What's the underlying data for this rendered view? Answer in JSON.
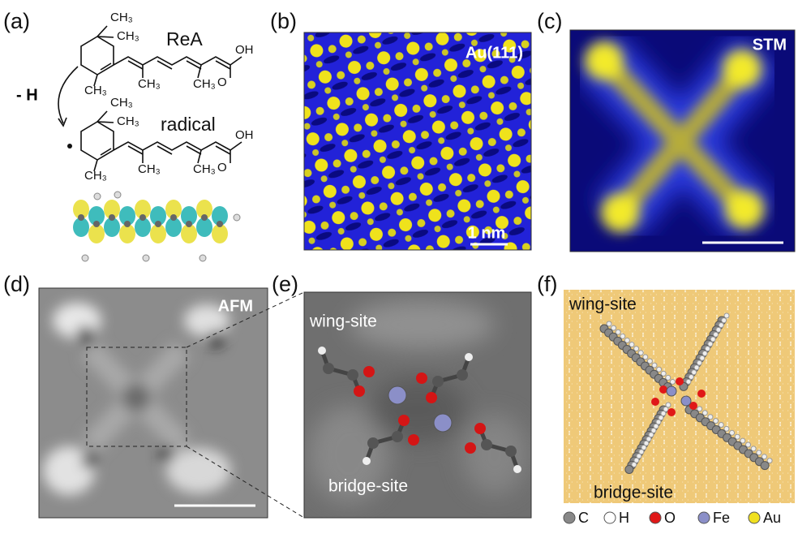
{
  "panels": [
    {
      "label": "(a)",
      "reaction": "- H",
      "molecules": [
        {
          "name": "ReA",
          "labels": [
            "CH₃",
            "CH₃",
            "CH₃",
            "CH₃",
            "CH₃",
            "OH",
            "O"
          ]
        },
        {
          "name": "radical",
          "labels": [
            "CH₃",
            "CH₃",
            "CH₃",
            "CH₃",
            "CH₃",
            "OH",
            "O"
          ]
        }
      ]
    },
    {
      "label": "(b)",
      "substrate": "Au(111)",
      "scale_bar": "1 nm"
    },
    {
      "label": "(c)",
      "technique": "STM"
    },
    {
      "label": "(d)",
      "technique": "AFM"
    },
    {
      "label": "(e)",
      "sites": [
        "wing-site",
        "bridge-site"
      ]
    },
    {
      "label": "(f)",
      "sites": [
        "wing-site",
        "bridge-site"
      ],
      "legend": [
        "C",
        "H",
        "O",
        "Fe",
        "Au"
      ]
    }
  ]
}
